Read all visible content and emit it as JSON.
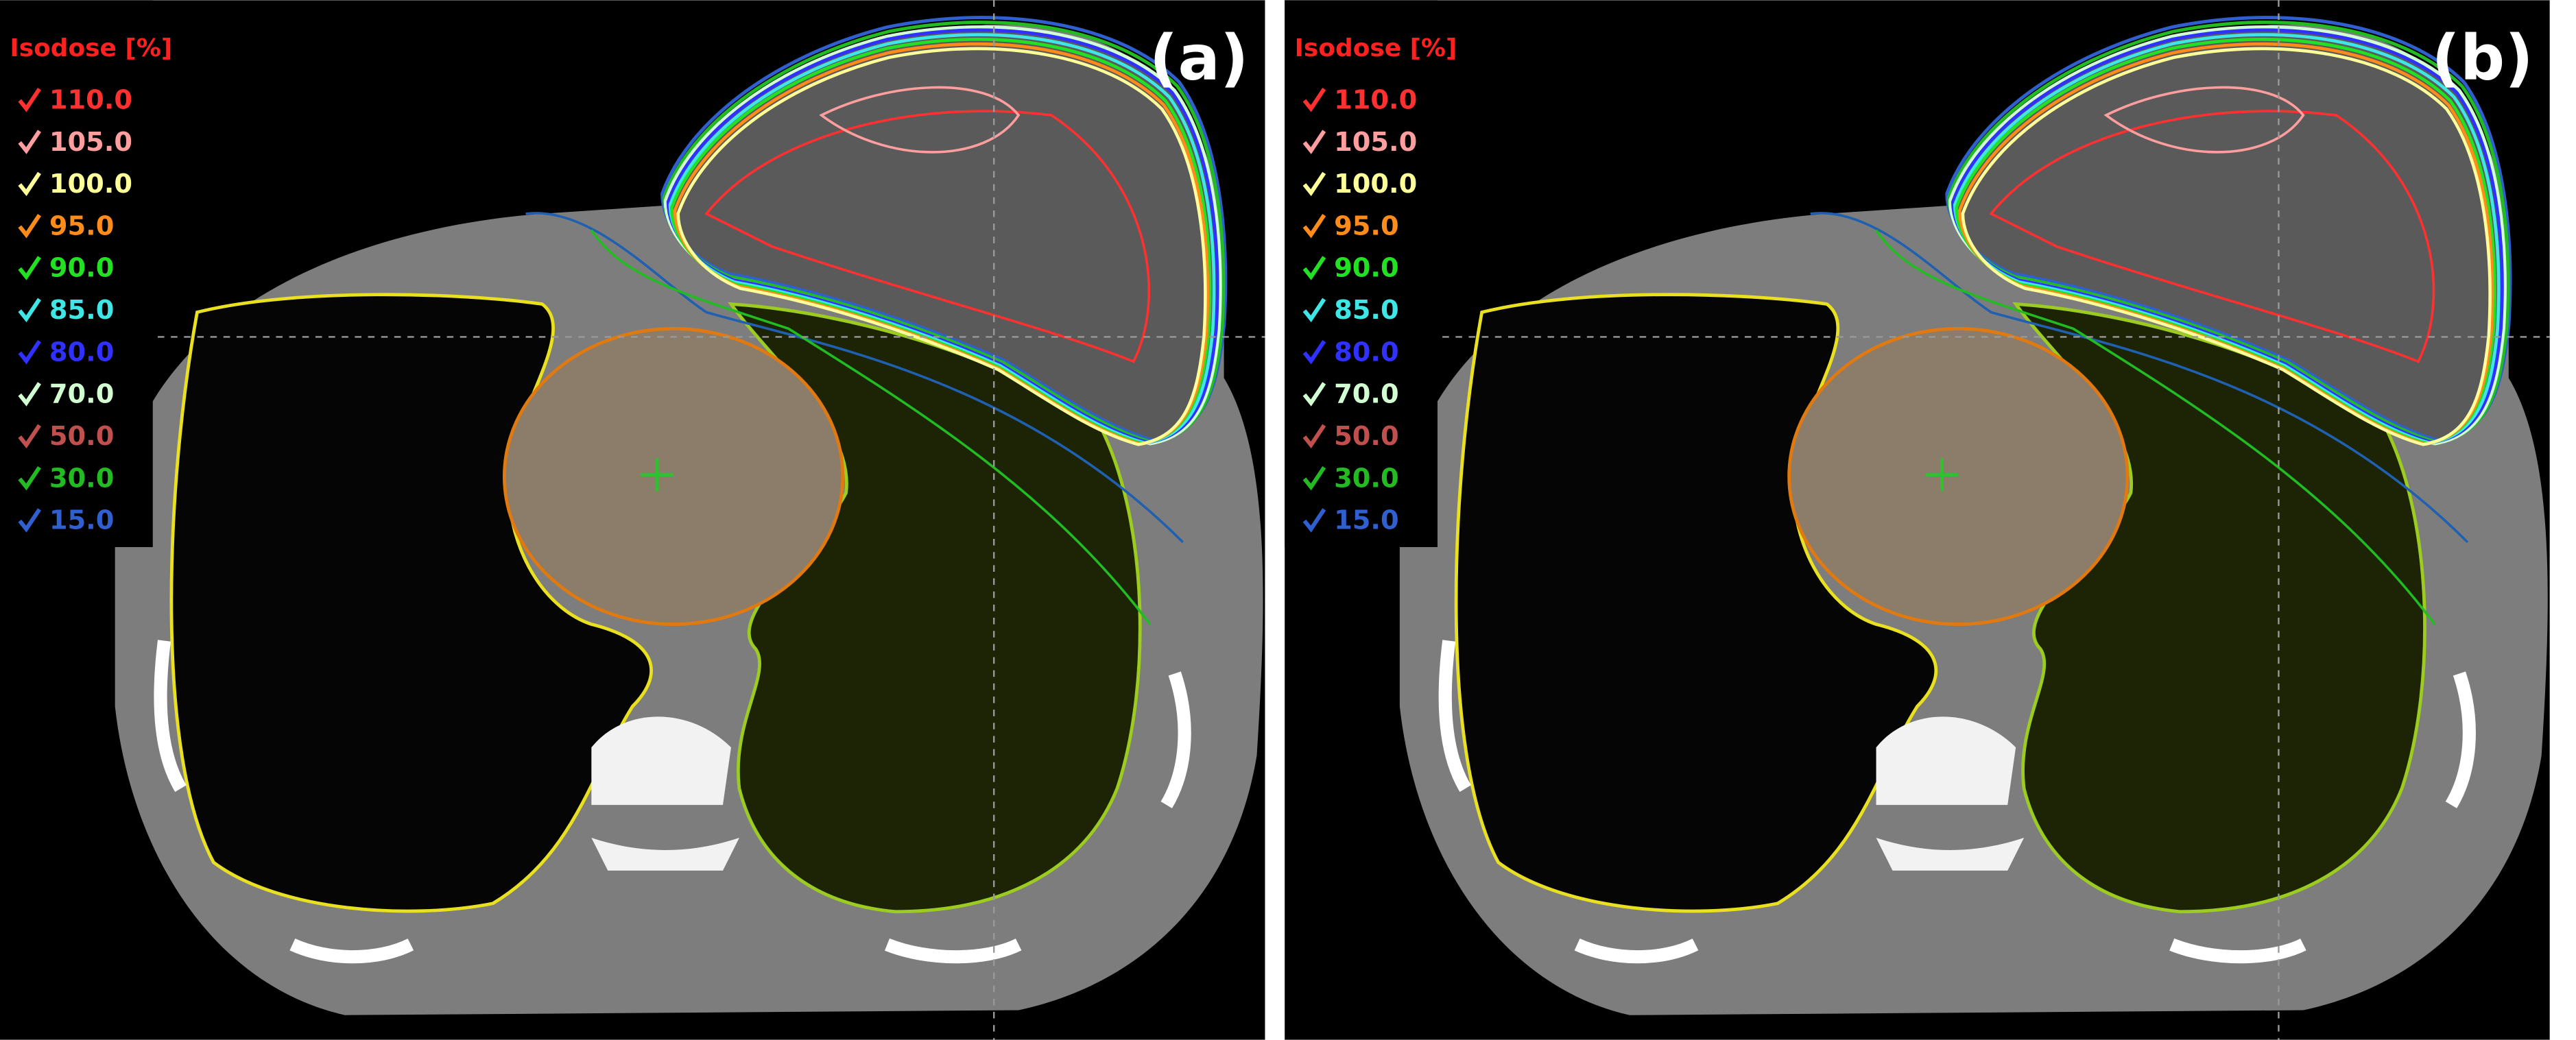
{
  "panels": [
    {
      "label": "(a)",
      "legend": {
        "title": "Isodose [%]",
        "items": [
          {
            "text": "110.0",
            "color": "#ff3030"
          },
          {
            "text": "105.0",
            "color": "#ff9e9e"
          },
          {
            "text": "100.0",
            "color": "#ffff9a"
          },
          {
            "text": "95.0",
            "color": "#ff8c1a"
          },
          {
            "text": "90.0",
            "color": "#22e022"
          },
          {
            "text": "85.0",
            "color": "#3ee6e6"
          },
          {
            "text": "80.0",
            "color": "#3030ff"
          },
          {
            "text": "70.0",
            "color": "#d2ffd2"
          },
          {
            "text": "50.0",
            "color": "#c0504d"
          },
          {
            "text": "30.0",
            "color": "#22bb22"
          },
          {
            "text": "15.0",
            "color": "#3060d0"
          }
        ]
      }
    },
    {
      "label": "(b)",
      "legend": {
        "title": "Isodose [%]",
        "items": [
          {
            "text": "110.0",
            "color": "#ff3030"
          },
          {
            "text": "105.0",
            "color": "#ff9e9e"
          },
          {
            "text": "100.0",
            "color": "#ffff9a"
          },
          {
            "text": "95.0",
            "color": "#ff8c1a"
          },
          {
            "text": "90.0",
            "color": "#22e022"
          },
          {
            "text": "85.0",
            "color": "#3ee6e6"
          },
          {
            "text": "80.0",
            "color": "#3030ff"
          },
          {
            "text": "70.0",
            "color": "#d2ffd2"
          },
          {
            "text": "50.0",
            "color": "#c0504d"
          },
          {
            "text": "30.0",
            "color": "#22bb22"
          },
          {
            "text": "15.0",
            "color": "#3060d0"
          }
        ]
      }
    }
  ]
}
